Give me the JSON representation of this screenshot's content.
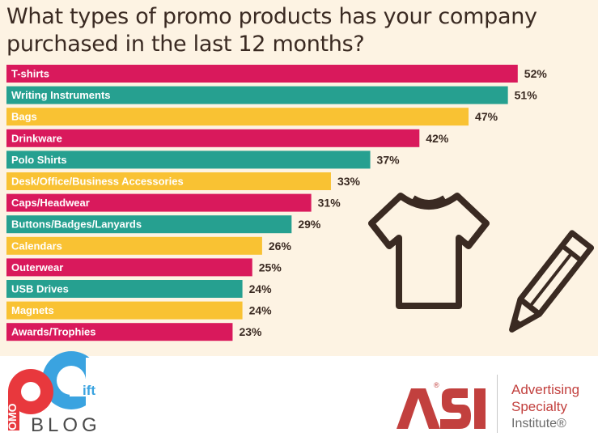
{
  "chart_data": {
    "type": "bar",
    "orientation": "horizontal",
    "title": "What types of promo products has your company purchased in the last 12 months?",
    "categories": [
      "T-shirts",
      "Writing Instruments",
      "Bags",
      "Drinkware",
      "Polo Shirts",
      "Desk/Office/Business Accessories",
      "Caps/Headwear",
      "Buttons/Badges/Lanyards",
      "Calendars",
      "Outerwear",
      "USB Drives",
      "Magnets",
      "Awards/Trophies"
    ],
    "values": [
      52,
      51,
      47,
      42,
      37,
      33,
      31,
      29,
      26,
      25,
      24,
      24,
      23
    ],
    "value_suffix": "%",
    "xlim": [
      0,
      100
    ],
    "colors": [
      "#d9195c",
      "#26a090",
      "#f9c233"
    ],
    "grid": false,
    "legend": "none"
  },
  "branding": {
    "promo_text": "ROMO",
    "gift_text": "ift",
    "blog_text": "BLOG",
    "asi_line1": "Advertising",
    "asi_line2": "Specialty",
    "asi_line3": "Institute®",
    "asi_mark_registered": "®"
  }
}
